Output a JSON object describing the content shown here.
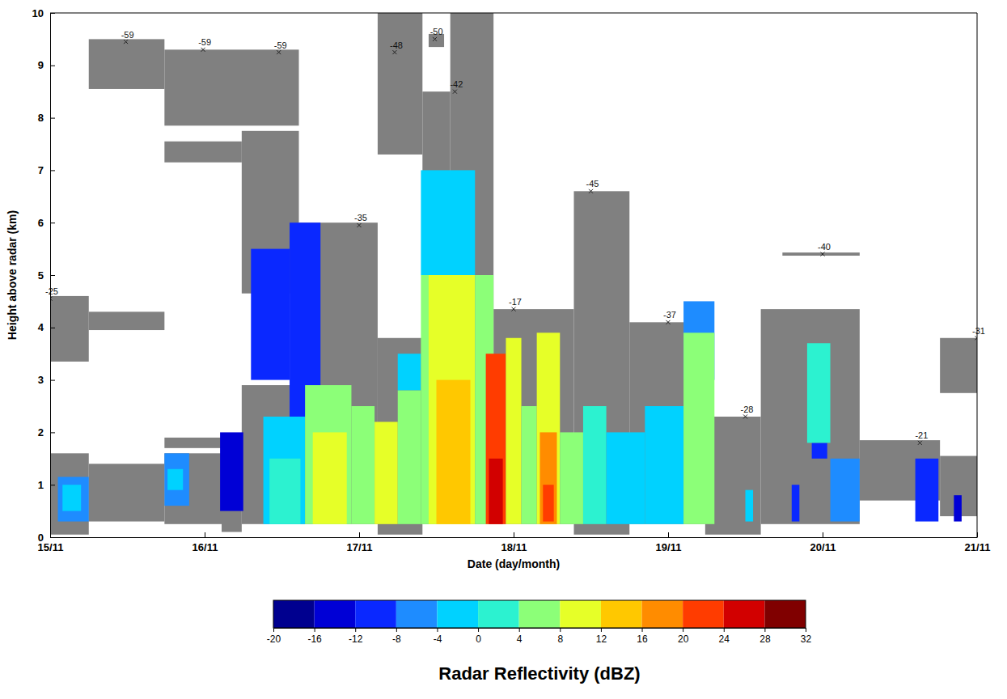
{
  "chart_data": {
    "type": "time_height",
    "x_label": "Date (day/month)",
    "y_label": "Height above radar (km)",
    "xlim": [
      15,
      21
    ],
    "xticks": [
      {
        "value": 15,
        "label": "15/11"
      },
      {
        "value": 16,
        "label": "16/11"
      },
      {
        "value": 17,
        "label": "17/11"
      },
      {
        "value": 18,
        "label": "18/11"
      },
      {
        "value": 19,
        "label": "19/11"
      },
      {
        "value": 20,
        "label": "20/11"
      },
      {
        "value": 21,
        "label": "21/11"
      }
    ],
    "ylim": [
      0,
      10
    ],
    "yticks": [
      0,
      1,
      2,
      3,
      4,
      5,
      6,
      7,
      8,
      9,
      10
    ],
    "cloud_regions": [
      {
        "x0": 15.0,
        "x1": 15.25,
        "y0": 0.05,
        "y1": 1.6
      },
      {
        "x0": 15.25,
        "x1": 15.74,
        "y0": 0.3,
        "y1": 1.4
      },
      {
        "x0": 15.74,
        "x1": 16.11,
        "y0": 0.25,
        "y1": 1.6
      },
      {
        "x0": 15.74,
        "x1": 16.11,
        "y0": 1.7,
        "y1": 1.9
      },
      {
        "x0": 16.11,
        "x1": 16.24,
        "y0": 0.1,
        "y1": 1.6
      },
      {
        "x0": 16.24,
        "x1": 16.61,
        "y0": 0.25,
        "y1": 2.9
      },
      {
        "x0": 16.61,
        "x1": 17.12,
        "y0": 0.25,
        "y1": 6.0
      },
      {
        "x0": 17.12,
        "x1": 17.41,
        "y0": 0.05,
        "y1": 3.8
      },
      {
        "x0": 17.41,
        "x1": 17.59,
        "y0": 0.25,
        "y1": 8.5
      },
      {
        "x0": 17.59,
        "x1": 17.87,
        "y0": 0.25,
        "y1": 10
      },
      {
        "x0": 17.12,
        "x1": 17.41,
        "y0": 7.3,
        "y1": 10
      },
      {
        "x0": 17.45,
        "x1": 17.55,
        "y0": 9.35,
        "y1": 9.6
      },
      {
        "x0": 17.87,
        "x1": 18.39,
        "y0": 0.25,
        "y1": 4.35
      },
      {
        "x0": 18.39,
        "x1": 18.75,
        "y0": 0.05,
        "y1": 6.6
      },
      {
        "x0": 18.75,
        "x1": 19.24,
        "y0": 0.25,
        "y1": 4.1
      },
      {
        "x0": 19.24,
        "x1": 19.6,
        "y0": 0.05,
        "y1": 2.3
      },
      {
        "x0": 19.6,
        "x1": 20.24,
        "y0": 0.25,
        "y1": 4.35
      },
      {
        "x0": 19.74,
        "x1": 20.24,
        "y0": 5.37,
        "y1": 5.43
      },
      {
        "x0": 20.24,
        "x1": 20.76,
        "y0": 0.7,
        "y1": 1.85
      },
      {
        "x0": 20.76,
        "x1": 21.0,
        "y0": 0.4,
        "y1": 1.55
      },
      {
        "x0": 20.76,
        "x1": 21.0,
        "y0": 2.75,
        "y1": 3.8
      },
      {
        "x0": 15.0,
        "x1": 15.25,
        "y0": 3.35,
        "y1": 4.6
      },
      {
        "x0": 15.25,
        "x1": 15.74,
        "y0": 3.95,
        "y1": 4.3
      },
      {
        "x0": 15.25,
        "x1": 15.74,
        "y0": 8.55,
        "y1": 9.5
      },
      {
        "x0": 15.74,
        "x1": 16.61,
        "y0": 7.85,
        "y1": 9.3
      },
      {
        "x0": 15.74,
        "x1": 16.24,
        "y0": 7.15,
        "y1": 7.55
      },
      {
        "x0": 16.24,
        "x1": 16.61,
        "y0": 4.65,
        "y1": 7.75
      }
    ],
    "cloud_top_temperatures": [
      {
        "x": 15.0,
        "y": 4.55,
        "value": -25
      },
      {
        "x": 15.49,
        "y": 9.45,
        "value": -59
      },
      {
        "x": 15.99,
        "y": 9.3,
        "value": -59
      },
      {
        "x": 16.48,
        "y": 9.25,
        "value": -59
      },
      {
        "x": 17.0,
        "y": 5.95,
        "value": -35
      },
      {
        "x": 17.23,
        "y": 9.25,
        "value": -48
      },
      {
        "x": 17.49,
        "y": 9.5,
        "value": -50
      },
      {
        "x": 17.62,
        "y": 8.5,
        "value": -42
      },
      {
        "x": 18.0,
        "y": 4.35,
        "value": -17
      },
      {
        "x": 18.5,
        "y": 6.6,
        "value": -45
      },
      {
        "x": 19.0,
        "y": 4.1,
        "value": -37
      },
      {
        "x": 19.5,
        "y": 2.3,
        "value": -28
      },
      {
        "x": 20.0,
        "y": 5.4,
        "value": -40
      },
      {
        "x": 20.63,
        "y": 1.8,
        "value": -21
      },
      {
        "x": 21.0,
        "y": 3.8,
        "value": -31
      }
    ],
    "reflectivity_cells": [
      {
        "x0": 15.05,
        "x1": 15.25,
        "y0": 0.3,
        "y1": 1.15,
        "value": -8
      },
      {
        "x0": 15.08,
        "x1": 15.2,
        "y0": 0.5,
        "y1": 1.0,
        "value": -4
      },
      {
        "x0": 15.74,
        "x1": 15.9,
        "y0": 0.6,
        "y1": 1.6,
        "value": -8
      },
      {
        "x0": 15.76,
        "x1": 15.86,
        "y0": 0.9,
        "y1": 1.3,
        "value": -4
      },
      {
        "x0": 16.1,
        "x1": 16.25,
        "y0": 0.5,
        "y1": 2.0,
        "value": -16
      },
      {
        "x0": 16.3,
        "x1": 16.55,
        "y0": 3.0,
        "y1": 5.5,
        "value": -12
      },
      {
        "x0": 16.55,
        "x1": 16.75,
        "y0": 2.3,
        "y1": 6.0,
        "value": -12
      },
      {
        "x0": 16.38,
        "x1": 16.65,
        "y0": 0.25,
        "y1": 2.3,
        "value": -4
      },
      {
        "x0": 16.42,
        "x1": 16.62,
        "y0": 0.25,
        "y1": 1.5,
        "value": 0
      },
      {
        "x0": 16.65,
        "x1": 16.95,
        "y0": 0.25,
        "y1": 2.9,
        "value": 4
      },
      {
        "x0": 16.7,
        "x1": 16.92,
        "y0": 0.25,
        "y1": 2.0,
        "value": 8
      },
      {
        "x0": 16.95,
        "x1": 17.1,
        "y0": 0.25,
        "y1": 2.5,
        "value": 4
      },
      {
        "x0": 17.1,
        "x1": 17.25,
        "y0": 0.25,
        "y1": 2.2,
        "value": 8
      },
      {
        "x0": 17.25,
        "x1": 17.4,
        "y0": 2.8,
        "y1": 3.5,
        "value": -4
      },
      {
        "x0": 17.25,
        "x1": 17.4,
        "y0": 0.25,
        "y1": 2.8,
        "value": 4
      },
      {
        "x0": 17.4,
        "x1": 17.75,
        "y0": 5.0,
        "y1": 7.0,
        "value": -4
      },
      {
        "x0": 17.4,
        "x1": 17.55,
        "y0": 0.25,
        "y1": 5.0,
        "value": 4
      },
      {
        "x0": 17.45,
        "x1": 17.75,
        "y0": 0.25,
        "y1": 5.0,
        "value": 8
      },
      {
        "x0": 17.5,
        "x1": 17.72,
        "y0": 0.25,
        "y1": 3.0,
        "value": 12
      },
      {
        "x0": 17.75,
        "x1": 17.87,
        "y0": 0.25,
        "y1": 5.0,
        "value": 4
      },
      {
        "x0": 17.82,
        "x1": 17.95,
        "y0": 0.25,
        "y1": 3.5,
        "value": 20
      },
      {
        "x0": 17.84,
        "x1": 17.93,
        "y0": 0.25,
        "y1": 1.5,
        "value": 24
      },
      {
        "x0": 17.95,
        "x1": 18.05,
        "y0": 0.25,
        "y1": 3.8,
        "value": 8
      },
      {
        "x0": 18.05,
        "x1": 18.15,
        "y0": 0.25,
        "y1": 2.5,
        "value": 4
      },
      {
        "x0": 18.15,
        "x1": 18.3,
        "y0": 0.25,
        "y1": 3.9,
        "value": 8
      },
      {
        "x0": 18.17,
        "x1": 18.28,
        "y0": 0.25,
        "y1": 2.0,
        "value": 16
      },
      {
        "x0": 18.19,
        "x1": 18.26,
        "y0": 0.3,
        "y1": 1.0,
        "value": 20
      },
      {
        "x0": 18.3,
        "x1": 18.45,
        "y0": 0.25,
        "y1": 2.0,
        "value": 4
      },
      {
        "x0": 18.45,
        "x1": 18.6,
        "y0": 0.25,
        "y1": 2.5,
        "value": 0
      },
      {
        "x0": 18.6,
        "x1": 18.85,
        "y0": 0.25,
        "y1": 2.0,
        "value": -4
      },
      {
        "x0": 18.85,
        "x1": 19.1,
        "y0": 0.25,
        "y1": 2.5,
        "value": -4
      },
      {
        "x0": 19.1,
        "x1": 19.3,
        "y0": 3.0,
        "y1": 4.5,
        "value": -8
      },
      {
        "x0": 19.1,
        "x1": 19.3,
        "y0": 0.25,
        "y1": 3.9,
        "value": 4
      },
      {
        "x0": 19.5,
        "x1": 19.55,
        "y0": 0.3,
        "y1": 0.9,
        "value": -4
      },
      {
        "x0": 19.8,
        "x1": 19.85,
        "y0": 0.3,
        "y1": 1.0,
        "value": -12
      },
      {
        "x0": 19.93,
        "x1": 20.03,
        "y0": 1.5,
        "y1": 1.8,
        "value": -12
      },
      {
        "x0": 19.9,
        "x1": 20.05,
        "y0": 1.8,
        "y1": 3.7,
        "value": 0
      },
      {
        "x0": 20.05,
        "x1": 20.24,
        "y0": 0.3,
        "y1": 1.5,
        "value": -8
      },
      {
        "x0": 20.6,
        "x1": 20.75,
        "y0": 0.3,
        "y1": 1.5,
        "value": -12
      },
      {
        "x0": 20.85,
        "x1": 20.9,
        "y0": 0.3,
        "y1": 0.8,
        "value": -16
      }
    ],
    "colorbar": {
      "title": "Radar Reflectivity (dBZ)",
      "range": [
        -20,
        32
      ],
      "ticks": [
        -20,
        -16,
        -12,
        -8,
        -4,
        0,
        4,
        8,
        12,
        16,
        20,
        24,
        28,
        32
      ],
      "colors": [
        "#00008f",
        "#0000d6",
        "#0a28ff",
        "#1e8cff",
        "#00d2ff",
        "#2cf2d0",
        "#8cff78",
        "#e6ff28",
        "#ffc800",
        "#ff8c00",
        "#ff3c00",
        "#d20000",
        "#800000"
      ]
    }
  }
}
